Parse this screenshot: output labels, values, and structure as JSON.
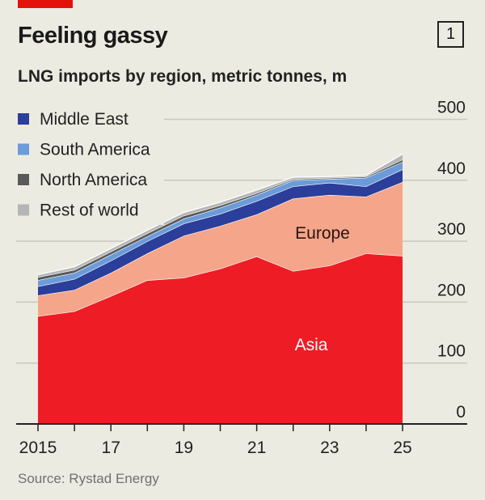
{
  "header": {
    "title": "Feeling gassy",
    "tag": "1",
    "subtitle": "LNG imports by region, metric tonnes, m"
  },
  "source": "Source: Rystad Energy",
  "colors": {
    "accent": "#e3120b",
    "Asia": "#ee1c25",
    "Europe": "#f4a58a",
    "Middle East": "#2b3e9a",
    "South America": "#6b9bd8",
    "North America": "#595959",
    "Rest of world": "#b5b5b5"
  },
  "chart_data": {
    "type": "area",
    "stacked": true,
    "title": "Feeling gassy",
    "subtitle": "LNG imports by region, metric tonnes, m",
    "x": [
      2015,
      2016,
      2017,
      2018,
      2019,
      2020,
      2021,
      2022,
      2023,
      2024,
      2025
    ],
    "x_tick_labels": [
      {
        "x": 2015,
        "label": "2015"
      },
      {
        "x": 2017,
        "label": "17"
      },
      {
        "x": 2019,
        "label": "19"
      },
      {
        "x": 2021,
        "label": "21"
      },
      {
        "x": 2023,
        "label": "23"
      },
      {
        "x": 2025,
        "label": "25"
      }
    ],
    "y_ticks": [
      0,
      100,
      200,
      300,
      400,
      500
    ],
    "ylim": [
      0,
      500
    ],
    "grid": true,
    "legend_position": "top-left",
    "series": [
      {
        "name": "Asia",
        "label_on_chart": "Asia",
        "values": [
          177,
          185,
          210,
          236,
          240,
          255,
          275,
          251,
          260,
          280,
          276
        ]
      },
      {
        "name": "Europe",
        "label_on_chart": "Europe",
        "values": [
          34,
          35,
          38,
          44,
          69,
          70,
          69,
          119,
          116,
          93,
          121
        ]
      },
      {
        "name": "Middle East",
        "values": [
          15,
          18,
          20,
          20,
          20,
          20,
          22,
          20,
          20,
          17,
          21
        ]
      },
      {
        "name": "South America",
        "values": [
          10,
          10,
          10,
          8,
          8,
          10,
          10,
          10,
          6,
          14,
          12
        ]
      },
      {
        "name": "North America",
        "values": [
          5,
          5,
          5,
          5,
          5,
          4,
          3,
          2,
          2,
          2,
          4
        ]
      },
      {
        "name": "Rest of world",
        "values": [
          4,
          5,
          5,
          5,
          5,
          5,
          5,
          3,
          2,
          2,
          9
        ]
      }
    ],
    "legend": [
      "Middle East",
      "South America",
      "North America",
      "Rest of world"
    ]
  }
}
